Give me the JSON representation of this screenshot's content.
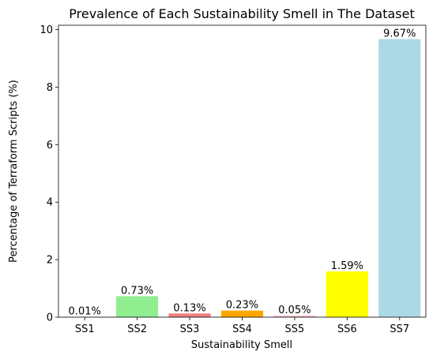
{
  "chart_data": {
    "type": "bar",
    "title": "Prevalence of Each Sustainability Smell in The Dataset",
    "xlabel": "Sustainability Smell",
    "ylabel": "Percentage of Terraform Scripts (%)",
    "categories": [
      "SS1",
      "SS2",
      "SS3",
      "SS4",
      "SS5",
      "SS6",
      "SS7"
    ],
    "values": [
      0.01,
      0.73,
      0.13,
      0.23,
      0.05,
      1.59,
      9.67
    ],
    "data_labels": [
      "0.01%",
      "0.73%",
      "0.13%",
      "0.23%",
      "0.05%",
      "1.59%",
      "9.67%"
    ],
    "colors": [
      "#1f77b4",
      "#90ee90",
      "#f08080",
      "#ffa500",
      "#ffb6c1",
      "#ffff00",
      "#add8e6"
    ],
    "ylim": [
      0,
      10.15
    ],
    "yticks": [
      0,
      2,
      4,
      6,
      8,
      10
    ],
    "grid": false
  }
}
